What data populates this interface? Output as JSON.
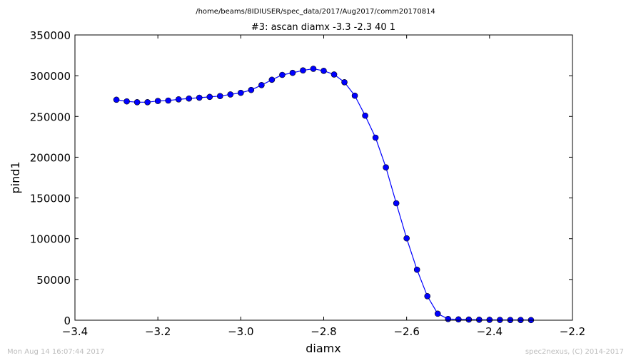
{
  "chart_data": {
    "type": "line",
    "suptitle": "/home/beams/8IDIUSER/spec_data/2017/Aug2017/comm20170814",
    "title": "#3: ascan  diamx -3.3 -2.3  40 1",
    "xlabel": "diamx",
    "ylabel": "pind1",
    "xlim": [
      -3.4,
      -2.2
    ],
    "ylim": [
      0,
      350000
    ],
    "xticks": [
      -3.4,
      -3.2,
      -3.0,
      -2.8,
      -2.6,
      -2.4,
      -2.2
    ],
    "xtick_labels": [
      "−3.4",
      "−3.2",
      "−3.0",
      "−2.8",
      "−2.6",
      "−2.4",
      "−2.2"
    ],
    "yticks": [
      0,
      50000,
      100000,
      150000,
      200000,
      250000,
      300000,
      350000
    ],
    "ytick_labels": [
      "0",
      "50000",
      "100000",
      "150000",
      "200000",
      "250000",
      "300000",
      "350000"
    ],
    "grid": false,
    "series": [
      {
        "color": "#0000ff",
        "marker": "circle",
        "x": [
          -3.3,
          -3.275,
          -3.25,
          -3.225,
          -3.2,
          -3.175,
          -3.15,
          -3.125,
          -3.1,
          -3.075,
          -3.05,
          -3.025,
          -3.0,
          -2.975,
          -2.95,
          -2.925,
          -2.9,
          -2.875,
          -2.85,
          -2.825,
          -2.8,
          -2.775,
          -2.75,
          -2.725,
          -2.7,
          -2.675,
          -2.65,
          -2.625,
          -2.6,
          -2.575,
          -2.55,
          -2.525,
          -2.5,
          -2.475,
          -2.45,
          -2.425,
          -2.4,
          -2.375,
          -2.35,
          -2.325,
          -2.3
        ],
        "y": [
          270500,
          268500,
          267500,
          267500,
          269000,
          269500,
          271000,
          272000,
          273000,
          274000,
          275000,
          277000,
          279000,
          282500,
          288500,
          295000,
          301000,
          303500,
          306500,
          308500,
          306000,
          301500,
          292000,
          275500,
          251000,
          224000,
          187500,
          143500,
          100500,
          62000,
          29500,
          8000,
          1500,
          1000,
          800,
          600,
          500,
          400,
          300,
          300,
          200
        ]
      }
    ]
  },
  "footer": {
    "left": "Mon Aug 14 16:07:44 2017",
    "right": "spec2nexus, (C) 2014-2017"
  }
}
